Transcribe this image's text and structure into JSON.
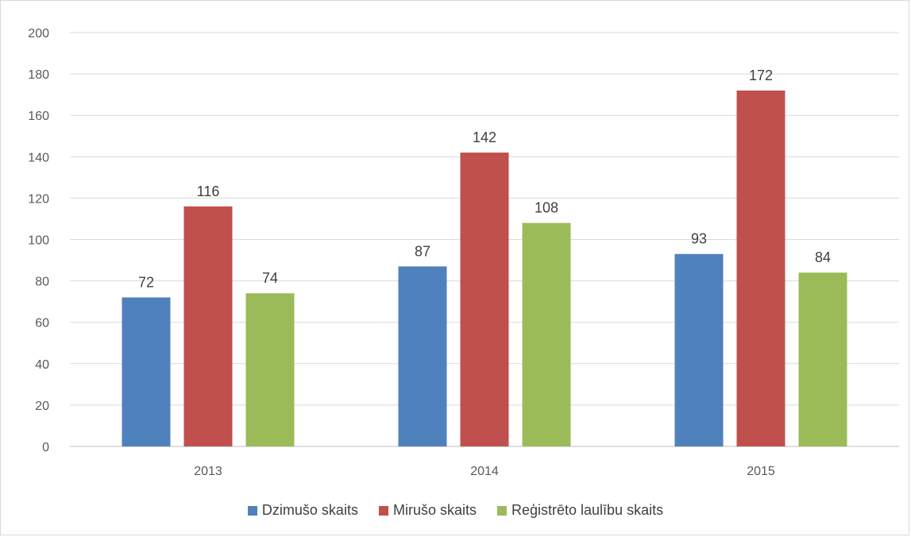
{
  "chart_data": {
    "type": "bar",
    "title": "",
    "xlabel": "",
    "ylabel": "",
    "categories": [
      "2013",
      "2014",
      "2015"
    ],
    "series": [
      {
        "name": "Dzimušo skaits",
        "values": [
          72,
          87,
          93
        ],
        "color": "#4f81bd"
      },
      {
        "name": "Mirušo skaits",
        "values": [
          116,
          142,
          172
        ],
        "color": "#c0504d"
      },
      {
        "name": "Reģistrēto laulību skaits",
        "values": [
          74,
          108,
          84
        ],
        "color": "#9bbb59"
      }
    ],
    "ylim": [
      0,
      200
    ],
    "yticks": [
      0,
      20,
      40,
      60,
      80,
      100,
      120,
      140,
      160,
      180,
      200
    ],
    "grid": true,
    "legend_position": "bottom",
    "data_labels": true
  }
}
